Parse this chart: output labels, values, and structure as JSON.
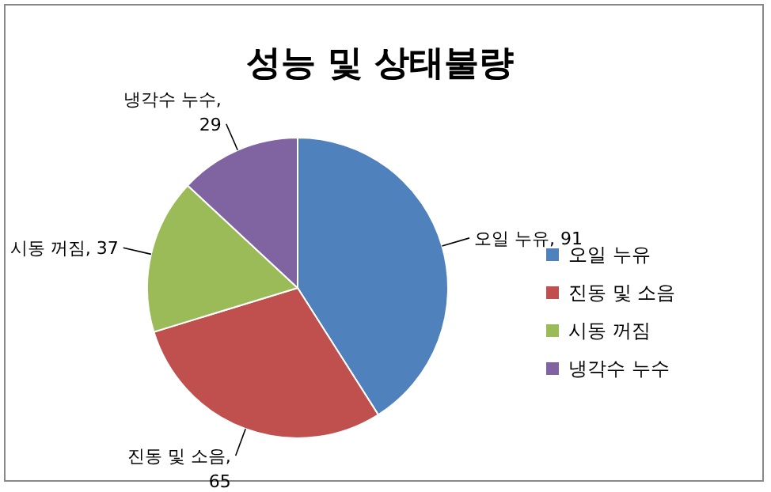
{
  "chart_data": {
    "type": "pie",
    "title": "성능 및 상태불량",
    "categories": [
      "오일 누유",
      "진동 및 소음",
      "시동 꺼짐",
      "냉각수 누수"
    ],
    "values": [
      91,
      65,
      37,
      29
    ],
    "colors": [
      "#4f81bd",
      "#c0504d",
      "#9bbb59",
      "#8064a2"
    ],
    "value_labels": [
      "오일 누유, 91",
      "진동 및 소음, 65",
      "시동 꺼짐, 37",
      "냉각수 누수, 29"
    ],
    "legend": "right"
  }
}
